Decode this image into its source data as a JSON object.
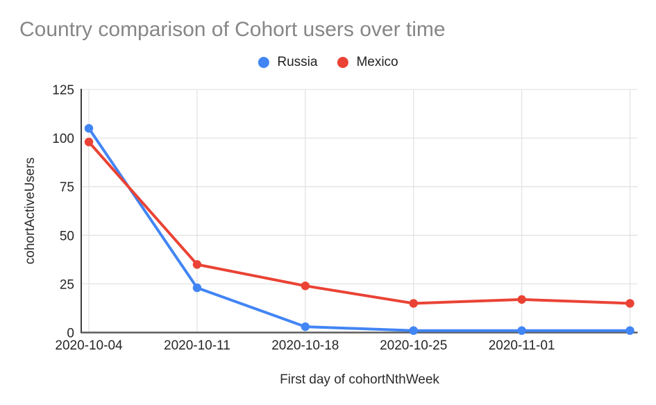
{
  "chart_data": {
    "type": "line",
    "title": "Country comparison of Cohort users over time",
    "xlabel": "First day of cohortNthWeek",
    "ylabel": "cohortActiveUsers",
    "categories": [
      "2020-10-04",
      "2020-10-11",
      "2020-10-18",
      "2020-10-25",
      "2020-11-01",
      ""
    ],
    "series": [
      {
        "name": "Russia",
        "color": "#4285F4",
        "values": [
          105,
          23,
          3,
          1,
          1,
          1
        ]
      },
      {
        "name": "Mexico",
        "color": "#EA4335",
        "values": [
          98,
          35,
          24,
          15,
          17,
          15
        ]
      }
    ],
    "ylim": [
      0,
      125
    ],
    "y_ticks": [
      0,
      25,
      50,
      75,
      100,
      125
    ],
    "grid": true,
    "legend_position": "top-center"
  },
  "style": {
    "background": "#ffffff",
    "title_color": "#868686",
    "axis_title_color": "#2b2b2b",
    "tick_label_color": "#262626",
    "legend_label_color": "#1f1f1f",
    "y_axis_color": "#3c3c3c",
    "baseline_color": "#5c5c5c",
    "grid_color": "#e3e3e3"
  }
}
